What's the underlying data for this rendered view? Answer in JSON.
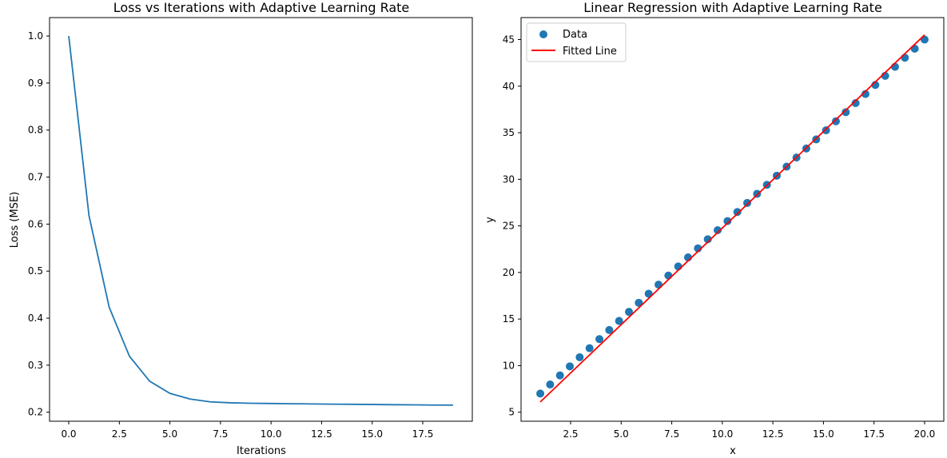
{
  "chart_data": [
    {
      "type": "line",
      "title": "Loss vs Iterations with Adaptive Learning Rate",
      "xlabel": "Iterations",
      "ylabel": "Loss (MSE)",
      "xlim": [
        -0.95,
        19.95
      ],
      "ylim": [
        0.1808,
        1.0392
      ],
      "xticks": [
        0.0,
        2.5,
        5.0,
        7.5,
        10.0,
        12.5,
        15.0,
        17.5
      ],
      "xtick_labels": [
        "0.0",
        "2.5",
        "5.0",
        "7.5",
        "10.0",
        "12.5",
        "15.0",
        "17.5"
      ],
      "yticks": [
        0.2,
        0.3,
        0.4,
        0.5,
        0.6,
        0.7,
        0.8,
        0.9,
        1.0
      ],
      "ytick_labels": [
        "0.2",
        "0.3",
        "0.4",
        "0.5",
        "0.6",
        "0.7",
        "0.8",
        "0.9",
        "1.0"
      ],
      "series": [
        {
          "name": "Loss",
          "color": "#1f77b4",
          "x": [
            0,
            1,
            2,
            3,
            4,
            5,
            6,
            7,
            8,
            9,
            10,
            11,
            12,
            13,
            14,
            15,
            16,
            17,
            18,
            19
          ],
          "y": [
            1.0,
            0.618,
            0.423,
            0.319,
            0.266,
            0.24,
            0.228,
            0.222,
            0.22,
            0.219,
            0.2185,
            0.218,
            0.2176,
            0.2172,
            0.2168,
            0.2164,
            0.216,
            0.2156,
            0.2152,
            0.215
          ]
        }
      ]
    },
    {
      "type": "scatter",
      "title": "Linear Regression with Adaptive Learning Rate",
      "xlabel": "x",
      "ylabel": "y",
      "xlim": [
        0.05,
        20.95
      ],
      "ylim": [
        4.03,
        47.36
      ],
      "xticks": [
        2.5,
        5.0,
        7.5,
        10.0,
        12.5,
        15.0,
        17.5,
        20.0
      ],
      "xtick_labels": [
        "2.5",
        "5.0",
        "7.5",
        "10.0",
        "12.5",
        "15.0",
        "17.5",
        "20.0"
      ],
      "yticks": [
        5,
        10,
        15,
        20,
        25,
        30,
        35,
        40,
        45
      ],
      "ytick_labels": [
        "5",
        "10",
        "15",
        "20",
        "25",
        "30",
        "35",
        "40",
        "45"
      ],
      "legend": {
        "position": "upper-left",
        "entries": [
          "Data",
          "Fitted Line"
        ]
      },
      "series": [
        {
          "name": "Data",
          "kind": "scatter",
          "color": "#1f77b4",
          "x_start": 1.0,
          "x_end": 20.0,
          "count": 40,
          "y_intercept": 5.0,
          "y_slope": 2.0
        },
        {
          "name": "Fitted Line",
          "kind": "line",
          "color": "#ff0000",
          "x": [
            1.0,
            20.0
          ],
          "y": [
            6.1,
            45.5
          ]
        }
      ]
    }
  ]
}
